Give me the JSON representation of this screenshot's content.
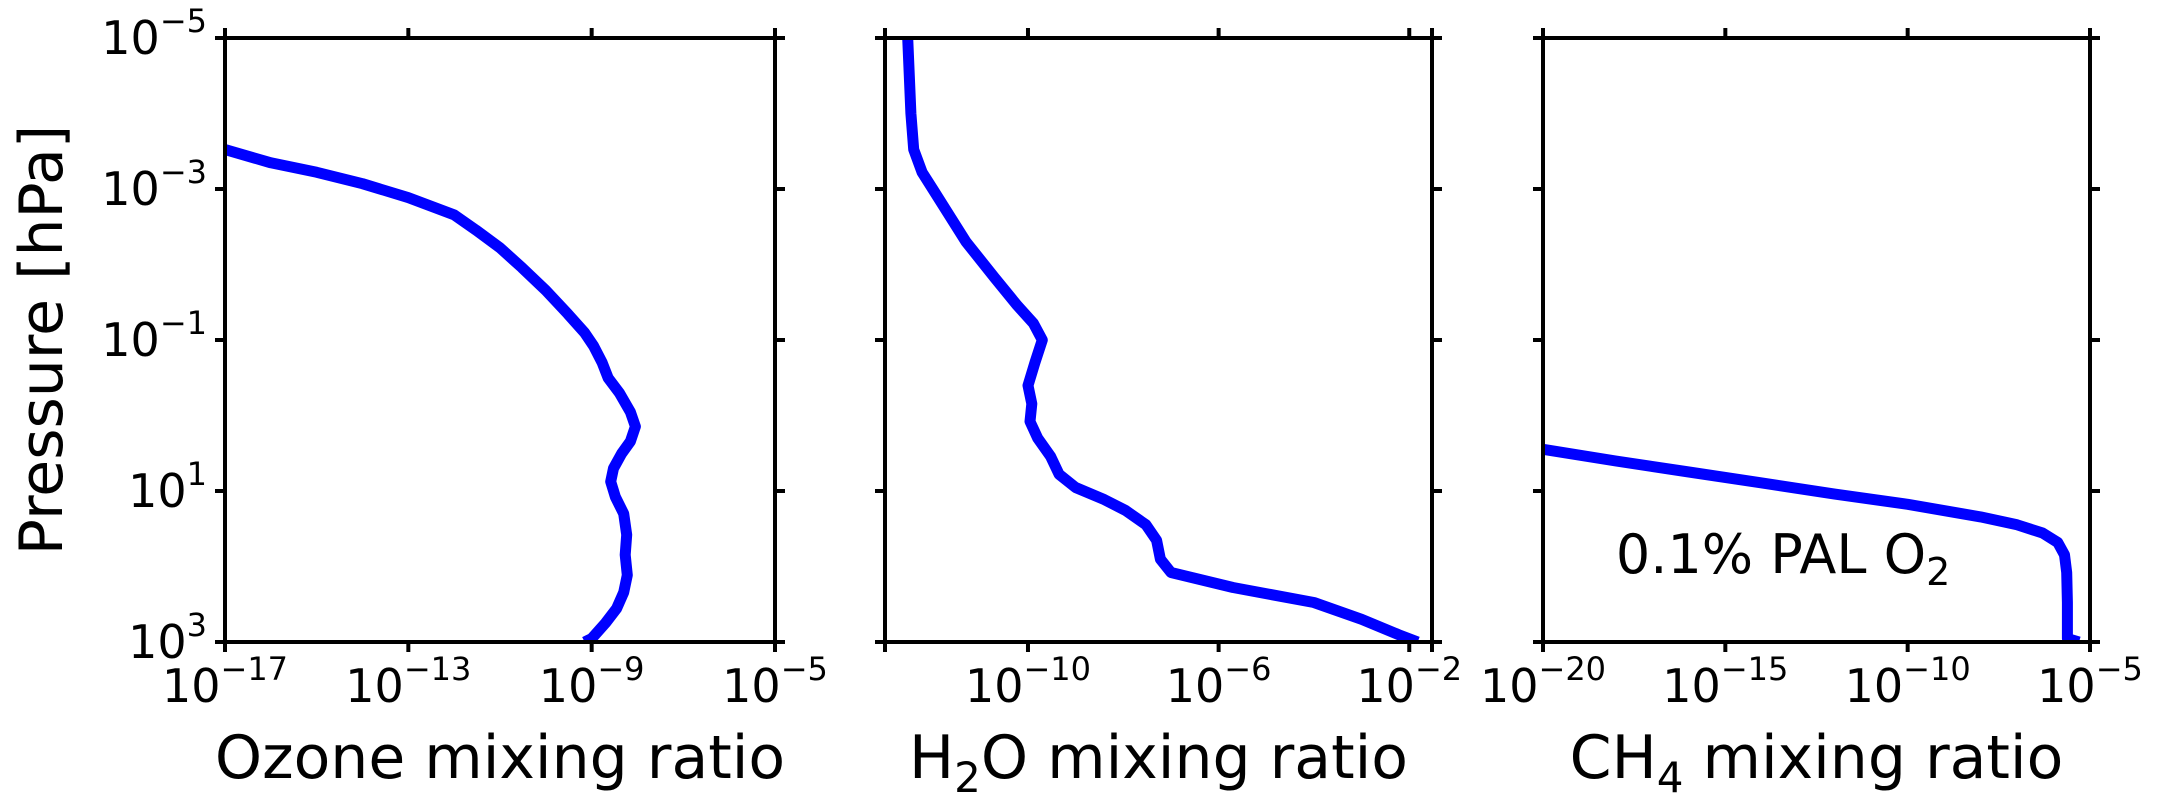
{
  "colors": {
    "line": "#0000ff",
    "axis": "#000000",
    "annotation": "#0000ff"
  },
  "chart_data": [
    {
      "type": "line",
      "xscale": "log",
      "yscale": "log",
      "y_inverted": true,
      "xlim": [
        1e-17,
        1e-05
      ],
      "ylim": [
        1000,
        1e-05
      ],
      "xlabel": {
        "main": "Ozone mixing ratio",
        "pre": "",
        "sub": "",
        "post": ""
      },
      "ylabel": "Pressure [hPa]",
      "xticks": [
        {
          "base": "10",
          "exp": "−17",
          "value": 1e-17
        },
        {
          "base": "10",
          "exp": "−13",
          "value": 1e-13
        },
        {
          "base": "10",
          "exp": "−9",
          "value": 1e-09
        },
        {
          "base": "10",
          "exp": "−5",
          "value": 1e-05
        }
      ],
      "yticks": [
        {
          "base": "10",
          "exp": "−5",
          "value": 1e-05
        },
        {
          "base": "10",
          "exp": "−3",
          "value": 0.001
        },
        {
          "base": "10",
          "exp": "−1",
          "value": 0.1
        },
        {
          "base": "10",
          "exp": "1",
          "value": 10
        },
        {
          "base": "10",
          "exp": "3",
          "value": 1000
        }
      ],
      "series": [
        {
          "points": [
            [
              1e-17,
              0.0003
            ],
            [
              1e-16,
              0.00045
            ],
            [
              1e-15,
              0.0006
            ],
            [
              1e-14,
              0.00085
            ],
            [
              1e-13,
              0.0013
            ],
            [
              1e-12,
              0.0022
            ],
            [
              3e-12,
              0.0035
            ],
            [
              1e-11,
              0.006
            ],
            [
              3e-11,
              0.011
            ],
            [
              1e-10,
              0.022
            ],
            [
              3e-10,
              0.045
            ],
            [
              7e-10,
              0.08
            ],
            [
              1.1e-09,
              0.12
            ],
            [
              1.7e-09,
              0.2
            ],
            [
              2.3e-09,
              0.32
            ],
            [
              4e-09,
              0.5
            ],
            [
              7e-09,
              0.9
            ],
            [
              9e-09,
              1.4
            ],
            [
              7e-09,
              2.2
            ],
            [
              4.5e-09,
              3.2
            ],
            [
              3e-09,
              5
            ],
            [
              2.6e-09,
              7.5
            ],
            [
              3.3e-09,
              12
            ],
            [
              5e-09,
              20
            ],
            [
              5.8e-09,
              38
            ],
            [
              5.4e-09,
              70
            ],
            [
              6e-09,
              130
            ],
            [
              5e-09,
              220
            ],
            [
              3.5e-09,
              360
            ],
            [
              2e-09,
              560
            ],
            [
              1e-09,
              900
            ],
            [
              7e-10,
              1000
            ]
          ]
        }
      ]
    },
    {
      "type": "line",
      "xscale": "log",
      "yscale": "log",
      "y_inverted": true,
      "xlim": [
        1e-13,
        0.03
      ],
      "ylim": [
        1000,
        1e-05
      ],
      "xlabel": {
        "main": "",
        "pre": "H",
        "sub": "2",
        "post": "O mixing ratio"
      },
      "ylabel": "",
      "xticks": [
        {
          "base": "10",
          "exp": "−10",
          "value": 1e-10
        },
        {
          "base": "10",
          "exp": "−6",
          "value": 1e-06
        },
        {
          "base": "10",
          "exp": "−2",
          "value": 0.01
        }
      ],
      "xminorticks": [
        1e-13,
        0.03
      ],
      "yticks": [
        {
          "value": 1e-05
        },
        {
          "value": 0.001
        },
        {
          "value": 0.1
        },
        {
          "value": 10
        },
        {
          "value": 1000
        }
      ],
      "series": [
        {
          "points": [
            [
              3e-13,
              1e-05
            ],
            [
              3.5e-13,
              0.0001
            ],
            [
              4e-13,
              0.0003
            ],
            [
              6e-13,
              0.0006
            ],
            [
              1e-12,
              0.001
            ],
            [
              2e-12,
              0.002
            ],
            [
              5e-12,
              0.005
            ],
            [
              2e-11,
              0.015
            ],
            [
              6e-11,
              0.035
            ],
            [
              1.3e-10,
              0.06
            ],
            [
              2e-10,
              0.1
            ],
            [
              1.4e-10,
              0.2
            ],
            [
              1e-10,
              0.4
            ],
            [
              1.2e-10,
              0.7
            ],
            [
              1.1e-10,
              1.2
            ],
            [
              1.6e-10,
              2
            ],
            [
              3e-10,
              3.5
            ],
            [
              4.5e-10,
              6
            ],
            [
              1e-09,
              9
            ],
            [
              4e-09,
              13
            ],
            [
              1.1e-08,
              18
            ],
            [
              3e-08,
              28
            ],
            [
              5e-08,
              45
            ],
            [
              6e-08,
              80
            ],
            [
              1e-07,
              120
            ],
            [
              2e-06,
              190
            ],
            [
              0.0001,
              300
            ],
            [
              0.001,
              500
            ],
            [
              0.006,
              800
            ],
            [
              0.015,
              1000
            ]
          ]
        }
      ]
    },
    {
      "type": "line",
      "xscale": "log",
      "yscale": "log",
      "y_inverted": true,
      "xlim": [
        1e-20,
        1e-05
      ],
      "ylim": [
        1000,
        1e-05
      ],
      "xlabel": {
        "main": "",
        "pre": "CH",
        "sub": "4",
        "post": " mixing ratio"
      },
      "ylabel": "",
      "xticks": [
        {
          "base": "10",
          "exp": "−20",
          "value": 1e-20
        },
        {
          "base": "10",
          "exp": "−15",
          "value": 1e-15
        },
        {
          "base": "10",
          "exp": "−10",
          "value": 1e-10
        },
        {
          "base": "10",
          "exp": "−5",
          "value": 1e-05
        }
      ],
      "yticks": [
        {
          "value": 1e-05
        },
        {
          "value": 0.001
        },
        {
          "value": 0.1
        },
        {
          "value": 10
        },
        {
          "value": 1000
        }
      ],
      "annotation": {
        "pre": "0.1% PAL O",
        "sub": "2",
        "x": 1e-18,
        "y": 70
      },
      "series": [
        {
          "points": [
            [
              1e-20,
              2.8
            ],
            [
              1e-18,
              4
            ],
            [
              1e-16,
              5.6
            ],
            [
              1e-14,
              7.8
            ],
            [
              1e-12,
              11
            ],
            [
              1e-10,
              15
            ],
            [
              1e-08,
              22
            ],
            [
              1e-07,
              28
            ],
            [
              5e-07,
              36
            ],
            [
              1.3e-06,
              48
            ],
            [
              2e-06,
              70
            ],
            [
              2.3e-06,
              120
            ],
            [
              2.4e-06,
              300
            ],
            [
              2.4e-06,
              900
            ],
            [
              5e-06,
              1000
            ]
          ]
        }
      ]
    }
  ]
}
